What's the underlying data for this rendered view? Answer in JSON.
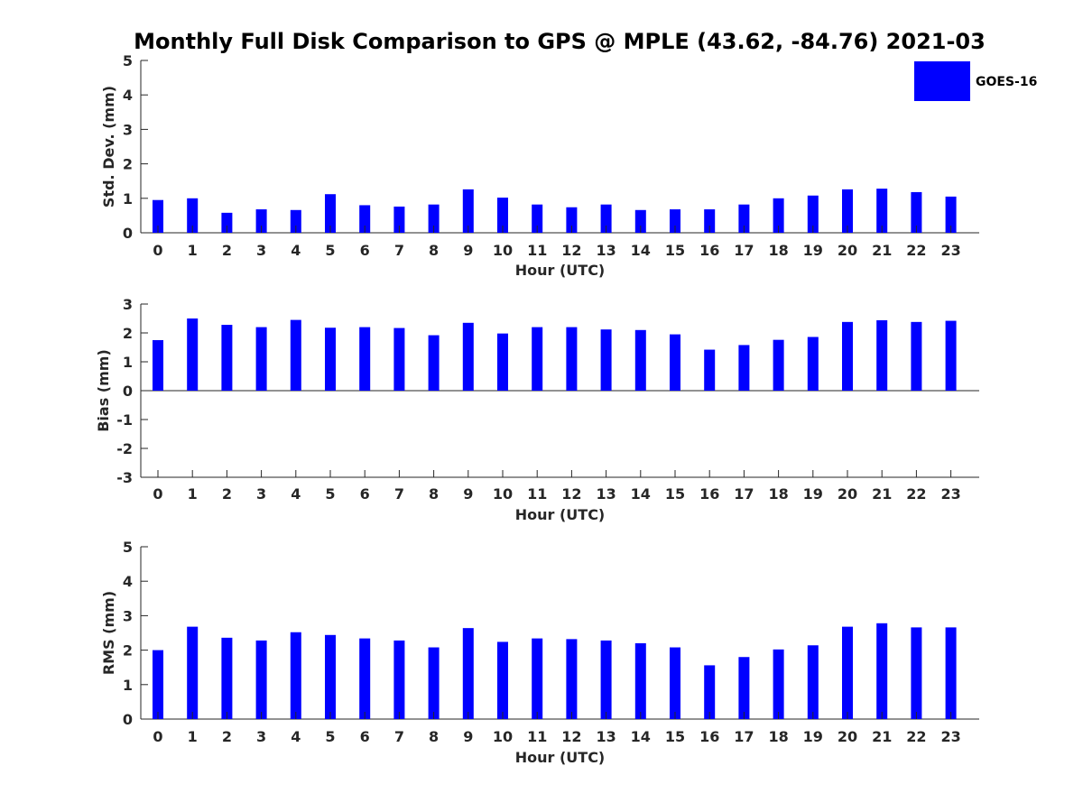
{
  "title": "Monthly Full Disk Comparison to GPS @ MPLE (43.62, -84.76) 2021-03",
  "legend": {
    "label": "GOES-16",
    "placement": "top-right"
  },
  "colors": {
    "bar": "#0000ff",
    "axis": "#262626"
  },
  "chart_data": [
    {
      "type": "bar",
      "categories": [
        "0",
        "1",
        "2",
        "3",
        "4",
        "5",
        "6",
        "7",
        "8",
        "9",
        "10",
        "11",
        "12",
        "13",
        "14",
        "15",
        "16",
        "17",
        "18",
        "19",
        "20",
        "21",
        "22",
        "23"
      ],
      "series": [
        {
          "name": "GOES-16",
          "values": [
            0.95,
            1.0,
            0.58,
            0.68,
            0.66,
            1.12,
            0.8,
            0.76,
            0.82,
            1.26,
            1.02,
            0.82,
            0.74,
            0.82,
            0.66,
            0.68,
            0.68,
            0.82,
            1.0,
            1.08,
            1.26,
            1.28,
            1.18,
            1.05
          ]
        }
      ],
      "xlabel": "Hour (UTC)",
      "ylabel": "Std. Dev. (mm)",
      "ylim": [
        0,
        5
      ],
      "yticks": [
        "0",
        "1",
        "2",
        "3",
        "4",
        "5"
      ],
      "grid": false
    },
    {
      "type": "bar",
      "categories": [
        "0",
        "1",
        "2",
        "3",
        "4",
        "5",
        "6",
        "7",
        "8",
        "9",
        "10",
        "11",
        "12",
        "13",
        "14",
        "15",
        "16",
        "17",
        "18",
        "19",
        "20",
        "21",
        "22",
        "23"
      ],
      "series": [
        {
          "name": "GOES-16",
          "values": [
            1.75,
            2.5,
            2.28,
            2.2,
            2.45,
            2.18,
            2.2,
            2.17,
            1.92,
            2.35,
            1.98,
            2.2,
            2.2,
            2.12,
            2.1,
            1.95,
            1.42,
            1.58,
            1.76,
            1.86,
            2.38,
            2.44,
            2.38,
            2.42
          ]
        }
      ],
      "xlabel": "Hour (UTC)",
      "ylabel": "Bias (mm)",
      "ylim": [
        -3,
        3
      ],
      "yticks": [
        "-3",
        "-2",
        "-1",
        "0",
        "1",
        "2",
        "3"
      ],
      "grid": false
    },
    {
      "type": "bar",
      "categories": [
        "0",
        "1",
        "2",
        "3",
        "4",
        "5",
        "6",
        "7",
        "8",
        "9",
        "10",
        "11",
        "12",
        "13",
        "14",
        "15",
        "16",
        "17",
        "18",
        "19",
        "20",
        "21",
        "22",
        "23"
      ],
      "series": [
        {
          "name": "GOES-16",
          "values": [
            2.0,
            2.68,
            2.36,
            2.28,
            2.52,
            2.44,
            2.34,
            2.28,
            2.08,
            2.64,
            2.24,
            2.34,
            2.32,
            2.28,
            2.2,
            2.08,
            1.56,
            1.8,
            2.02,
            2.14,
            2.68,
            2.78,
            2.66,
            2.66
          ]
        }
      ],
      "xlabel": "Hour (UTC)",
      "ylabel": "RMS (mm)",
      "ylim": [
        0,
        5
      ],
      "yticks": [
        "0",
        "1",
        "2",
        "3",
        "4",
        "5"
      ],
      "grid": false
    }
  ]
}
